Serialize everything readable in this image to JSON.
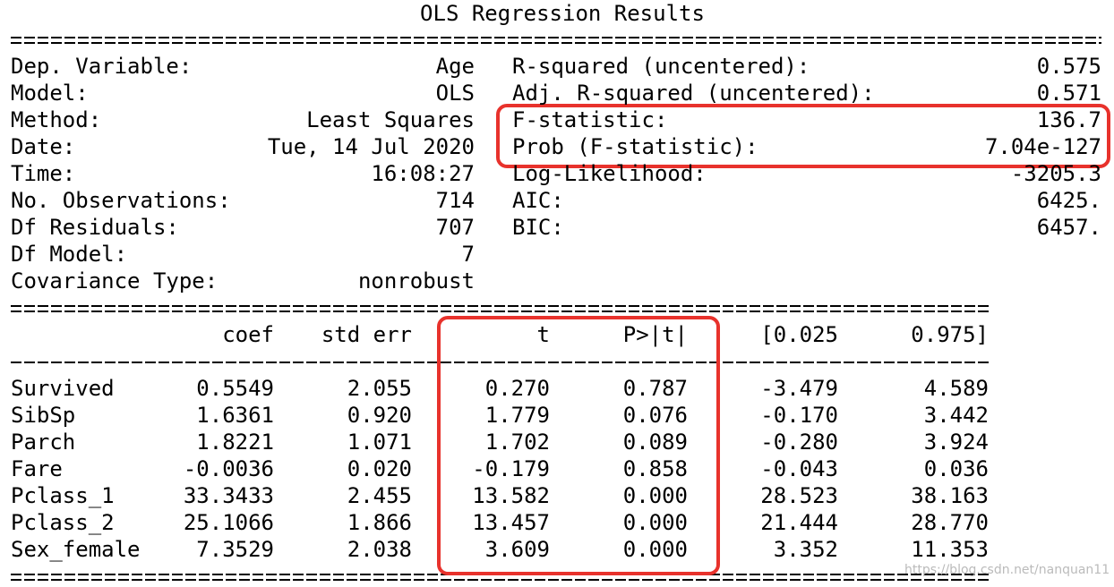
{
  "title": "OLS Regression Results",
  "summary": [
    [
      "Dep. Variable:",
      "Age",
      "R-squared (uncentered):",
      "0.575"
    ],
    [
      "Model:",
      "OLS",
      "Adj. R-squared (uncentered):",
      "0.571"
    ],
    [
      "Method:",
      "Least Squares",
      "F-statistic:",
      "136.7"
    ],
    [
      "Date:",
      "Tue, 14 Jul 2020",
      "Prob (F-statistic):",
      "7.04e-127"
    ],
    [
      "Time:",
      "16:08:27",
      "Log-Likelihood:",
      "-3205.3"
    ],
    [
      "No. Observations:",
      "714",
      "AIC:",
      "6425."
    ],
    [
      "Df Residuals:",
      "707",
      "BIC:",
      "6457."
    ],
    [
      "Df Model:",
      "7"
    ],
    [
      "Covariance Type:",
      "nonrobust"
    ]
  ],
  "table": {
    "header": [
      "coef",
      "std err",
      "t",
      "P>|t|",
      "[0.025",
      "0.975]"
    ],
    "rows": [
      [
        "Survived",
        "0.5549",
        "2.055",
        "0.270",
        "0.787",
        "-3.479",
        "4.589"
      ],
      [
        "SibSp",
        "1.6361",
        "0.920",
        "1.779",
        "0.076",
        "-0.170",
        "3.442"
      ],
      [
        "Parch",
        "1.8221",
        "1.071",
        "1.702",
        "0.089",
        "-0.280",
        "3.924"
      ],
      [
        "Fare",
        "-0.0036",
        "0.020",
        "-0.179",
        "0.858",
        "-0.043",
        "0.036"
      ],
      [
        "Pclass_1",
        "33.3433",
        "2.455",
        "13.582",
        "0.000",
        "28.523",
        "38.163"
      ],
      [
        "Pclass_2",
        "25.1066",
        "1.866",
        "13.457",
        "0.000",
        "21.444",
        "28.770"
      ],
      [
        "Sex_female",
        "7.3529",
        "2.038",
        "3.609",
        "0.000",
        "3.352",
        "11.353"
      ]
    ]
  },
  "watermark": "https://blog.csdn.net/nanquan11"
}
